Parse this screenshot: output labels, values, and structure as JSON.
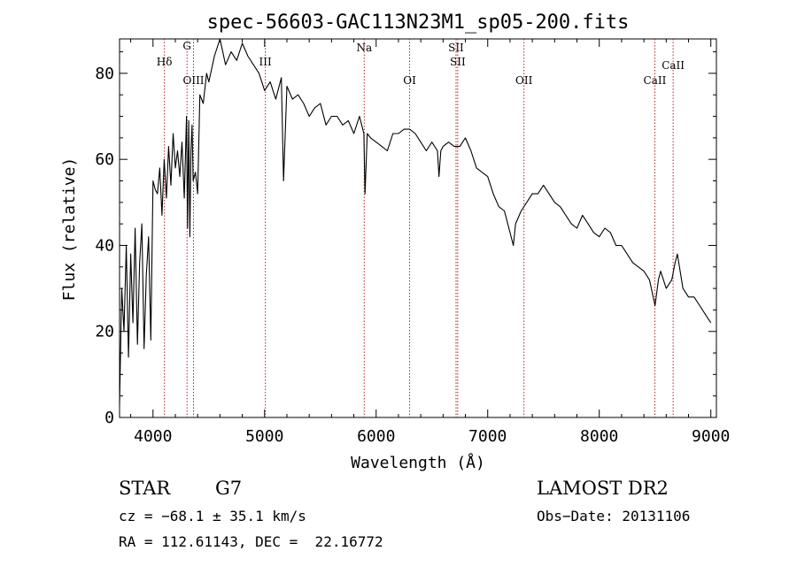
{
  "chart_data": {
    "type": "line",
    "title": "spec-56603-GAC113N23M1_sp05-200.fits",
    "xlabel": "Wavelength (Å)",
    "ylabel": "Flux (relative)",
    "xlim": [
      3700,
      9050
    ],
    "ylim": [
      0,
      88
    ],
    "xticks": [
      4000,
      5000,
      6000,
      7000,
      8000,
      9000
    ],
    "yticks": [
      0,
      20,
      40,
      60,
      80
    ],
    "grid": false,
    "series": [
      {
        "x": [
          3700,
          3720,
          3740,
          3760,
          3780,
          3800,
          3820,
          3840,
          3860,
          3880,
          3900,
          3920,
          3940,
          3960,
          3980,
          4000,
          4020,
          4040,
          4060,
          4080,
          4100,
          4120,
          4140,
          4160,
          4180,
          4200,
          4220,
          4240,
          4260,
          4280,
          4300,
          4310,
          4320,
          4330,
          4340,
          4350,
          4360,
          4380,
          4400,
          4420,
          4450,
          4480,
          4500,
          4550,
          4600,
          4650,
          4700,
          4750,
          4800,
          4850,
          4900,
          4950,
          5000,
          5050,
          5100,
          5150,
          5170,
          5200,
          5250,
          5300,
          5350,
          5400,
          5450,
          5500,
          5550,
          5600,
          5650,
          5700,
          5750,
          5800,
          5850,
          5890,
          5900,
          5920,
          5950,
          6000,
          6050,
          6100,
          6150,
          6200,
          6250,
          6300,
          6350,
          6400,
          6450,
          6500,
          6550,
          6563,
          6580,
          6600,
          6650,
          6700,
          6750,
          6800,
          6850,
          6900,
          6950,
          7000,
          7050,
          7100,
          7150,
          7200,
          7230,
          7250,
          7300,
          7350,
          7400,
          7450,
          7500,
          7550,
          7600,
          7650,
          7700,
          7750,
          7800,
          7850,
          7900,
          7950,
          8000,
          8050,
          8100,
          8150,
          8200,
          8250,
          8300,
          8350,
          8400,
          8450,
          8500,
          8530,
          8550,
          8600,
          8650,
          8680,
          8700,
          8750,
          8800,
          8850,
          8900,
          8950,
          9000
        ],
        "y": [
          3,
          30,
          20,
          40,
          14,
          38,
          22,
          44,
          17,
          36,
          45,
          16,
          33,
          42,
          18,
          55,
          53,
          52,
          58,
          47,
          60,
          51,
          63,
          54,
          66,
          58,
          62,
          56,
          64,
          51,
          70,
          44,
          69,
          42,
          62,
          68,
          55,
          57,
          52,
          75,
          73,
          80,
          78,
          84,
          88,
          82,
          85,
          83,
          87,
          84,
          82,
          80,
          76,
          78,
          74,
          79,
          55,
          77,
          74,
          75,
          73,
          70,
          72,
          73,
          68,
          70,
          70,
          68,
          69,
          66,
          70,
          66,
          52,
          66,
          65,
          64,
          63,
          62,
          66,
          66,
          67,
          67,
          66,
          64,
          62,
          64,
          62,
          56,
          62,
          63,
          64,
          63,
          63,
          65,
          62,
          58,
          57,
          56,
          52,
          49,
          48,
          43,
          40,
          45,
          48,
          50,
          52,
          52,
          54,
          52,
          50,
          49,
          47,
          45,
          44,
          47,
          45,
          43,
          42,
          44,
          43,
          40,
          40,
          38,
          36,
          35,
          34,
          32,
          26,
          32,
          34,
          30,
          32,
          36,
          38,
          30,
          28,
          28,
          26,
          24,
          22
        ]
      }
    ],
    "lines": [
      {
        "label": "Hδ",
        "wavelength": 4102
      },
      {
        "label": "G",
        "wavelength": 4305
      },
      {
        "label": "OIII",
        "wavelength": 4363
      },
      {
        "label": "III",
        "wavelength": 5007
      },
      {
        "label": "Na",
        "wavelength": 5893
      },
      {
        "label": "OI",
        "wavelength": 6300
      },
      {
        "label": "SII",
        "wavelength": 6716
      },
      {
        "label": "SII",
        "wavelength": 6731
      },
      {
        "label": "OII",
        "wavelength": 7325
      },
      {
        "label": "CaII",
        "wavelength": 8498
      },
      {
        "label": "CaII",
        "wavelength": 8662
      }
    ]
  },
  "info": {
    "object_type": "STAR",
    "subclass": "G7",
    "survey": "LAMOST DR2",
    "cz": "cz = −68.1 ± 35.1 km/s",
    "obs_date": "Obs−Date: 20131106",
    "radec": "RA = 112.61143, DEC =  22.16772"
  },
  "colors": {
    "line_marker": "#b22222",
    "spectrum": "#000000"
  }
}
